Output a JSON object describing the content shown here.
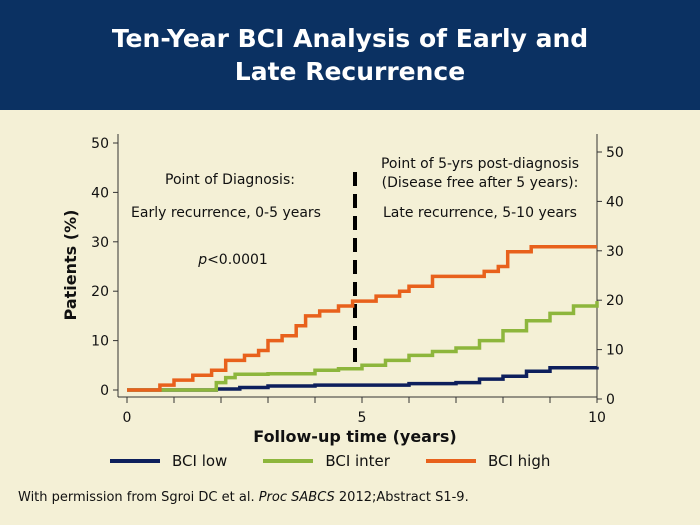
{
  "header": {
    "title": "Ten-Year BCI Analysis of Early and\nLate Recurrence"
  },
  "footer": {
    "prefix": "With permission from Sgroi DC et al. ",
    "journal": "Proc SABCS",
    "suffix": " 2012;Abstract S1-9."
  },
  "annotations": {
    "left_title": "Point of Diagnosis:",
    "left_sub": "Early recurrence, 0-5 years",
    "pvalue_italic": "p",
    "pvalue_rest": "<0.0001",
    "right_line1": "Point of 5-yrs post-diagnosis",
    "right_line2": "(Disease free after 5 years):",
    "right_sub": "Late recurrence, 5-10 years"
  },
  "chart_data": {
    "type": "line",
    "xlabel": "Follow-up time (years)",
    "ylabel": "Patients (%)",
    "xlim": [
      0,
      10
    ],
    "ylim": [
      0,
      50
    ],
    "xticks": [
      0,
      5,
      10
    ],
    "yticks": [
      0,
      10,
      20,
      30,
      40,
      50
    ],
    "series": [
      {
        "name": "BCI low",
        "color": "#0d1f5c",
        "x": [
          0,
          1.9,
          2.4,
          3.0,
          4.0,
          5.0,
          6.0,
          7.0,
          7.5,
          8.0,
          8.5,
          9.0,
          10
        ],
        "y": [
          0,
          0.2,
          0.5,
          0.8,
          1.0,
          1.0,
          1.3,
          1.5,
          2.2,
          2.8,
          3.8,
          4.5,
          4.7
        ]
      },
      {
        "name": "BCI inter",
        "color": "#8db63c",
        "x": [
          0,
          0.8,
          1.9,
          2.1,
          2.3,
          3.0,
          4.0,
          4.5,
          5.0,
          5.5,
          6.0,
          6.5,
          7.0,
          7.5,
          8.0,
          8.5,
          9.0,
          9.5,
          10
        ],
        "y": [
          0,
          0,
          1.5,
          2.5,
          3.2,
          3.3,
          4.0,
          4.3,
          5.0,
          6.0,
          7.0,
          7.8,
          8.5,
          10.0,
          12.0,
          14.0,
          15.5,
          17.0,
          18.0
        ]
      },
      {
        "name": "BCI high",
        "color": "#e8611c",
        "x": [
          0,
          0.7,
          1.0,
          1.4,
          1.8,
          2.1,
          2.5,
          2.8,
          3.0,
          3.3,
          3.6,
          3.8,
          4.1,
          4.5,
          4.8,
          5.0,
          5.3,
          5.8,
          6.0,
          6.5,
          7.0,
          7.6,
          7.9,
          8.1,
          8.6,
          9.0,
          10
        ],
        "y": [
          0,
          1,
          2,
          3,
          4,
          6,
          7,
          8,
          10,
          11,
          13,
          15,
          16,
          17,
          18,
          18,
          19,
          20,
          21,
          23,
          23,
          24,
          25,
          28,
          29,
          29,
          29
        ]
      }
    ]
  }
}
